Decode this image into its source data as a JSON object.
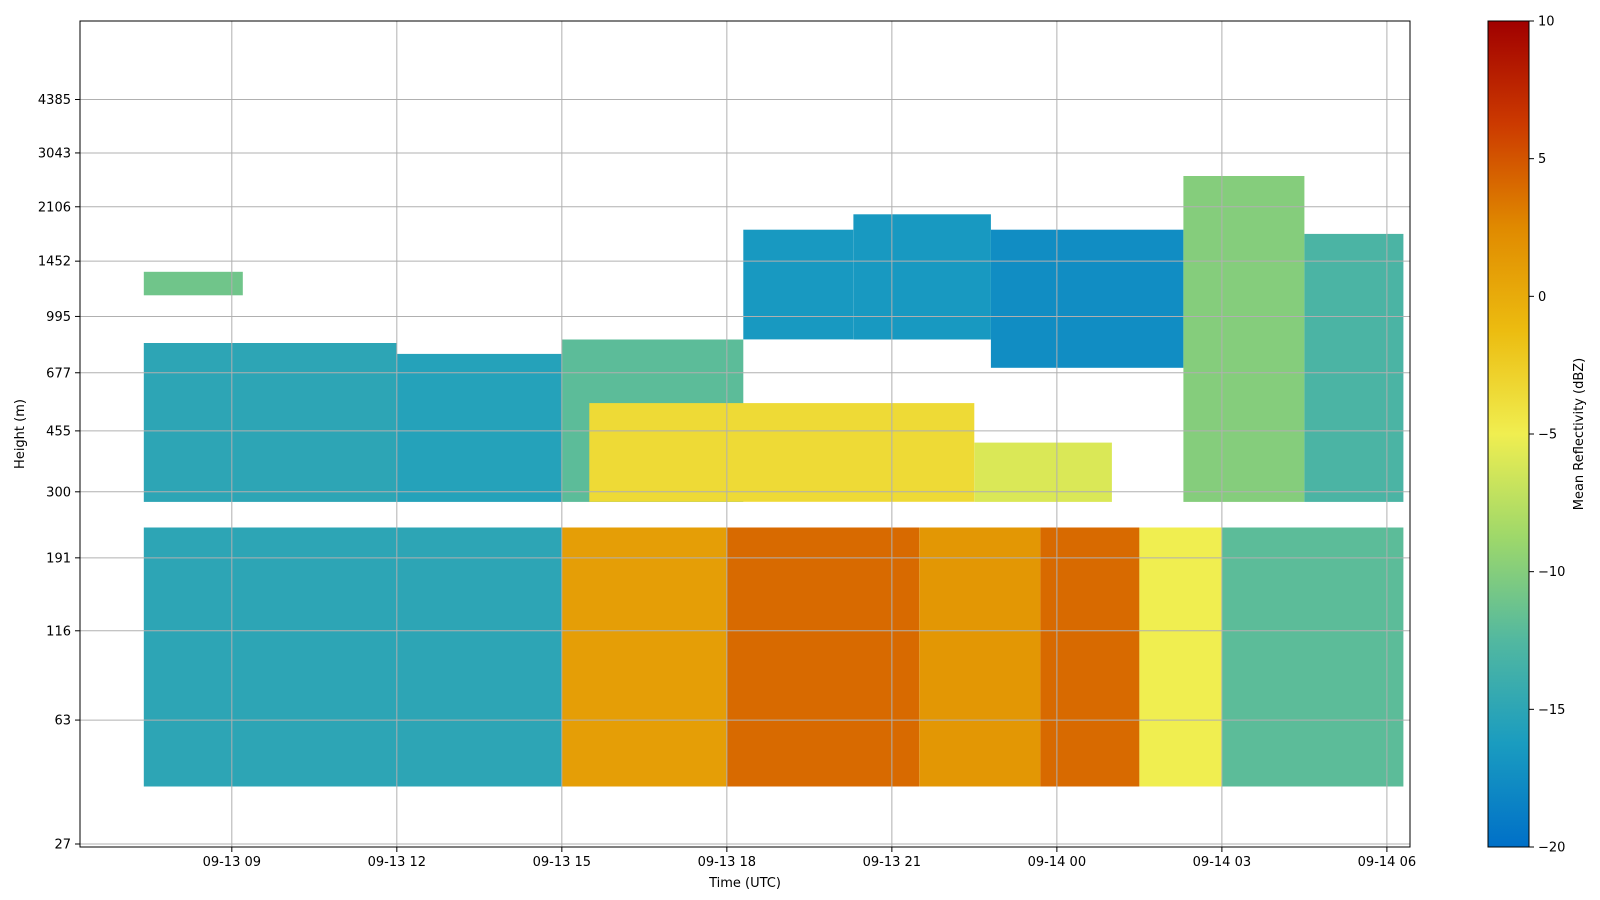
{
  "chart_data": {
    "type": "heatmap",
    "xlabel": "Time (UTC)",
    "ylabel": "Height (m)",
    "colorbar_label": "Mean Reflectivity (dBZ)",
    "x_ticks": [
      "09-13 09",
      "09-13 12",
      "09-13 15",
      "09-13 18",
      "09-13 21",
      "09-14 00",
      "09-14 03",
      "09-14 06"
    ],
    "y_ticks": [
      "27",
      "63",
      "116",
      "191",
      "300",
      "455",
      "677",
      "995",
      "1452",
      "2106",
      "3043",
      "4385"
    ],
    "colorbar_ticks": [
      "-20",
      "-15",
      "-10",
      "-5",
      "0",
      "5",
      "10"
    ],
    "color_range": [
      -20,
      10
    ],
    "colormap": [
      "#0070c8",
      "#1a9cc0",
      "#52b8a0",
      "#9ed86a",
      "#f0ee50",
      "#ecbc10",
      "#e08a00",
      "#cc3a00",
      "#a00000"
    ],
    "grid": true,
    "regions": [
      {
        "t0": 7.4,
        "t1": 9.2,
        "h0": 1150,
        "h1": 1350,
        "dbz": -11
      },
      {
        "t0": 7.4,
        "t1": 12.0,
        "h0": 280,
        "h1": 830,
        "dbz": -15
      },
      {
        "t0": 12.0,
        "t1": 15.0,
        "h0": 280,
        "h1": 770,
        "dbz": -15.5
      },
      {
        "t0": 15.0,
        "t1": 18.3,
        "h0": 280,
        "h1": 850,
        "dbz": -12
      },
      {
        "t0": 18.3,
        "t1": 20.3,
        "h0": 850,
        "h1": 1800,
        "dbz": -16.5
      },
      {
        "t0": 20.3,
        "t1": 22.8,
        "h0": 850,
        "h1": 2000,
        "dbz": -16.5
      },
      {
        "t0": 22.8,
        "t1": 26.3,
        "h0": 700,
        "h1": 1800,
        "dbz": -17.5
      },
      {
        "t0": 26.3,
        "t1": 28.5,
        "h0": 280,
        "h1": 2600,
        "dbz": -10
      },
      {
        "t0": 28.5,
        "t1": 30.3,
        "h0": 280,
        "h1": 1750,
        "dbz": -13
      },
      {
        "t0": 15.5,
        "t1": 22.5,
        "h0": 280,
        "h1": 550,
        "dbz": -3.5
      },
      {
        "t0": 22.5,
        "t1": 25.0,
        "h0": 280,
        "h1": 420,
        "dbz": -6
      },
      {
        "t0": 7.4,
        "t1": 15.0,
        "h0": 40,
        "h1": 235,
        "dbz": -15
      },
      {
        "t0": 15.0,
        "t1": 18.0,
        "h0": 40,
        "h1": 235,
        "dbz": 1
      },
      {
        "t0": 18.0,
        "t1": 21.5,
        "h0": 40,
        "h1": 235,
        "dbz": 4
      },
      {
        "t0": 21.5,
        "t1": 23.7,
        "h0": 40,
        "h1": 235,
        "dbz": 1.5
      },
      {
        "t0": 23.7,
        "t1": 25.5,
        "h0": 40,
        "h1": 235,
        "dbz": 4
      },
      {
        "t0": 25.5,
        "t1": 27.0,
        "h0": 40,
        "h1": 235,
        "dbz": -5
      },
      {
        "t0": 27.0,
        "t1": 30.3,
        "h0": 40,
        "h1": 235,
        "dbz": -12
      }
    ]
  }
}
